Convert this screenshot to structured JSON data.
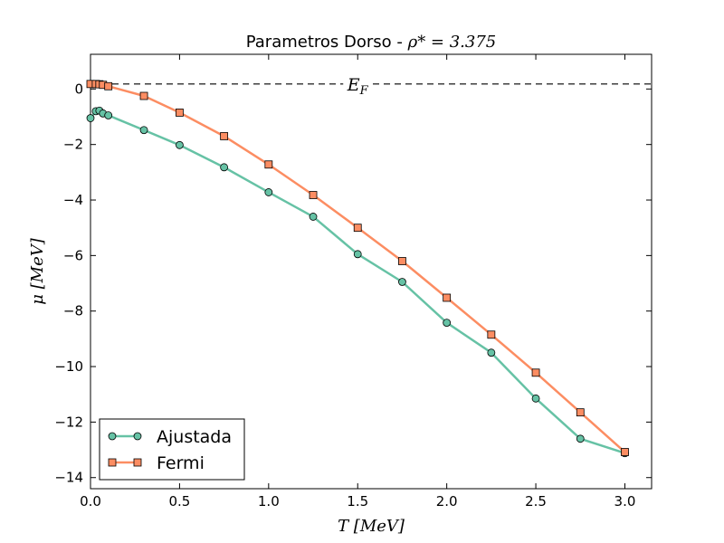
{
  "chart_data": {
    "type": "line",
    "title_prefix": "Parametros Dorso - ",
    "title_math": "ρ* = 3.375",
    "xlabel": "T [MeV]",
    "ylabel": "μ [MeV]",
    "xlim": [
      0.0,
      3.15
    ],
    "ylim": [
      -14.4,
      1.25
    ],
    "xticks": [
      0.0,
      0.5,
      1.0,
      1.5,
      2.0,
      2.5,
      3.0
    ],
    "xtick_labels": [
      "0.0",
      "0.5",
      "1.0",
      "1.5",
      "2.0",
      "2.5",
      "3.0"
    ],
    "yticks": [
      0,
      -2,
      -4,
      -6,
      -8,
      -10,
      -12,
      -14
    ],
    "ytick_labels": [
      "0",
      "−2",
      "−4",
      "−6",
      "−8",
      "−10",
      "−12",
      "−14"
    ],
    "grid": false,
    "reference_line": {
      "name": "fermi-energy-line",
      "y": 0.18,
      "label": "E_F",
      "label_x": 1.5,
      "style": "dashed"
    },
    "legend_position": "bottom-left",
    "series": [
      {
        "name": "Ajustada",
        "color": "#66c2a5",
        "marker": "circle",
        "x": [
          0.0,
          0.03,
          0.05,
          0.07,
          0.1,
          0.3,
          0.5,
          0.75,
          1.0,
          1.25,
          1.5,
          1.75,
          2.0,
          2.25,
          2.5,
          2.75,
          3.0
        ],
        "y": [
          -1.05,
          -0.8,
          -0.78,
          -0.88,
          -0.95,
          -1.48,
          -2.02,
          -2.82,
          -3.72,
          -4.6,
          -5.95,
          -6.95,
          -8.42,
          -9.5,
          -11.15,
          -12.6,
          -13.12
        ]
      },
      {
        "name": "Fermi",
        "color": "#fc8d62",
        "marker": "square",
        "x": [
          0.0,
          0.03,
          0.05,
          0.07,
          0.1,
          0.3,
          0.5,
          0.75,
          1.0,
          1.25,
          1.5,
          1.75,
          2.0,
          2.25,
          2.5,
          2.75,
          3.0
        ],
        "y": [
          0.18,
          0.18,
          0.17,
          0.15,
          0.1,
          -0.25,
          -0.85,
          -1.7,
          -2.72,
          -3.82,
          -5.0,
          -6.2,
          -7.52,
          -8.85,
          -10.22,
          -11.65,
          -13.08
        ]
      }
    ]
  }
}
